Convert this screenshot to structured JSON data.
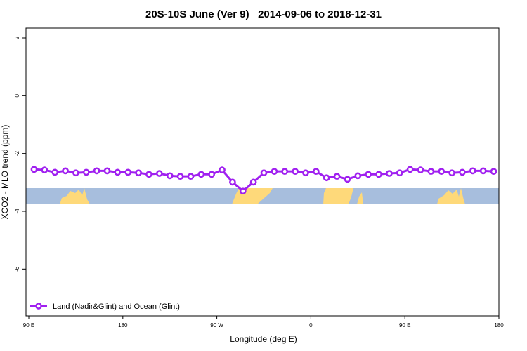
{
  "chart_data": {
    "type": "line",
    "title": "20S-10S June (Ver 9)   2014-09-06 to 2018-12-31",
    "x_label": "Longitude (deg E)",
    "y_label": "XCO2 - MLO trend (ppm)",
    "x": [
      95,
      105,
      115,
      125,
      135,
      145,
      155,
      165,
      175,
      185,
      195,
      205,
      215,
      225,
      235,
      245,
      255,
      265,
      275,
      285,
      295,
      305,
      315,
      325,
      335,
      345,
      355,
      365,
      375,
      385,
      395,
      405,
      415,
      425,
      435,
      445,
      455,
      465,
      475,
      485,
      495,
      505,
      515,
      525,
      535
    ],
    "series": [
      {
        "name": "Land (Nadir&Glint) and Ocean (Glint)",
        "color": "#a020f0",
        "values": [
          -2.55,
          -2.57,
          -2.65,
          -2.6,
          -2.67,
          -2.65,
          -2.6,
          -2.6,
          -2.65,
          -2.65,
          -2.67,
          -2.72,
          -2.69,
          -2.77,
          -2.79,
          -2.79,
          -2.72,
          -2.72,
          -2.57,
          -2.99,
          -3.3,
          -2.99,
          -2.67,
          -2.62,
          -2.62,
          -2.62,
          -2.67,
          -2.62,
          -2.84,
          -2.79,
          -2.89,
          -2.77,
          -2.72,
          -2.72,
          -2.69,
          -2.67,
          -2.55,
          -2.57,
          -2.62,
          -2.62,
          -2.67,
          -2.65,
          -2.6,
          -2.6,
          -2.62
        ]
      }
    ],
    "xlim": [
      87.3,
      540
    ],
    "ylim": [
      -7.62,
      2.34
    ],
    "xticks": [
      {
        "value": 90,
        "label": "90 E"
      },
      {
        "value": 180,
        "label": "180"
      },
      {
        "value": 270,
        "label": "90 W"
      },
      {
        "value": 360,
        "label": "0"
      },
      {
        "value": 450,
        "label": "90 E"
      },
      {
        "value": 540,
        "label": "180"
      }
    ],
    "yticks": [
      2,
      0,
      -2,
      -4,
      -6
    ],
    "legend": "bottom-left"
  }
}
